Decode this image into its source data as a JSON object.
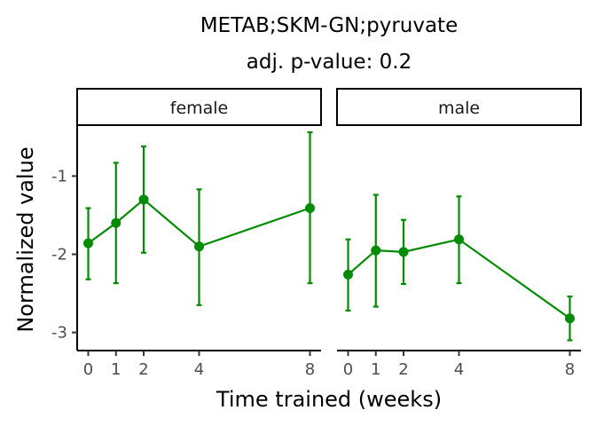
{
  "chart_data": {
    "type": "line",
    "title": "METAB;SKM-GN;pyruvate",
    "subtitle": "adj. p-value: 0.2",
    "xlabel": "Time trained (weeks)",
    "ylabel": "Normalized value",
    "x_ticks": [
      0,
      1,
      2,
      4,
      8
    ],
    "y_ticks": [
      -1,
      -2,
      -3
    ],
    "xlim": [
      -0.4,
      8.4
    ],
    "ylim": [
      -3.22,
      -0.36
    ],
    "color": "#008B00",
    "grid": false,
    "panels": [
      {
        "facet": "female",
        "x": [
          0,
          1,
          2,
          4,
          8
        ],
        "y": [
          -1.86,
          -1.6,
          -1.3,
          -1.9,
          -1.41
        ],
        "ymin": [
          -2.32,
          -2.37,
          -1.98,
          -2.65,
          -2.37
        ],
        "ymax": [
          -1.41,
          -0.83,
          -0.62,
          -1.17,
          -0.44
        ]
      },
      {
        "facet": "male",
        "x": [
          0,
          1,
          2,
          4,
          8
        ],
        "y": [
          -2.26,
          -1.95,
          -1.97,
          -1.81,
          -2.82
        ],
        "ymin": [
          -2.72,
          -2.67,
          -2.38,
          -2.37,
          -3.1
        ],
        "ymax": [
          -1.81,
          -1.24,
          -1.56,
          -1.26,
          -2.54
        ]
      }
    ]
  }
}
